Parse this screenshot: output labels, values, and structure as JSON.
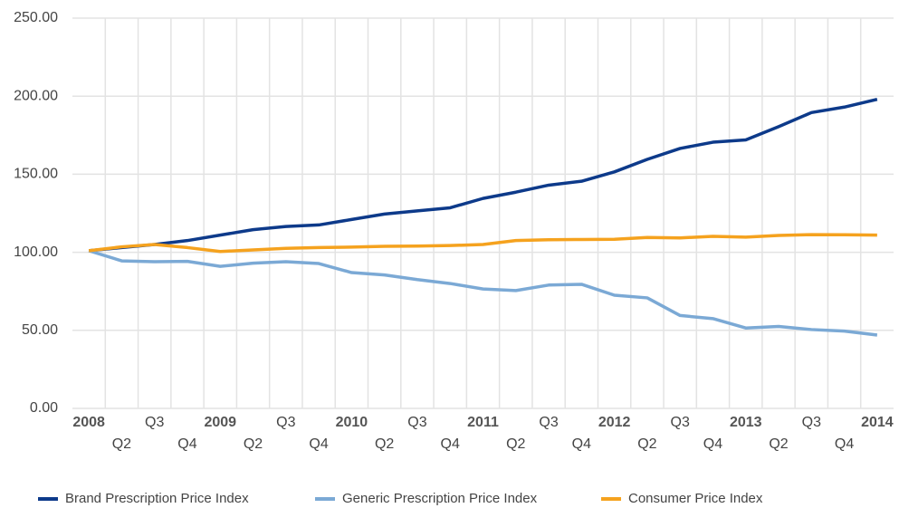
{
  "chart_data": {
    "type": "line",
    "categories": [
      "2008",
      "Q2",
      "Q3",
      "Q4",
      "2009",
      "Q2",
      "Q3",
      "Q4",
      "2010",
      "Q2",
      "Q3",
      "Q4",
      "2011",
      "Q2",
      "Q3",
      "Q4",
      "2012",
      "Q2",
      "Q3",
      "Q4",
      "2013",
      "Q2",
      "Q3",
      "Q4",
      "2014"
    ],
    "series": [
      {
        "name": "Brand Prescription Price Index",
        "color": "#0d3a8a",
        "values": [
          101,
          103,
          105,
          107.5,
          111,
          114.5,
          116.5,
          117.5,
          121,
          124.5,
          126.5,
          128.5,
          134.5,
          138.5,
          143,
          145.5,
          151.5,
          159.5,
          166.5,
          170.5,
          172,
          180.5,
          189.5,
          193,
          198
        ]
      },
      {
        "name": "Generic Prescription Price Index",
        "color": "#7ba9d5",
        "values": [
          101,
          94.5,
          94,
          94.2,
          91,
          93,
          94,
          92.8,
          87,
          85.5,
          82.5,
          80,
          76.5,
          75.5,
          79,
          79.5,
          72.5,
          70.8,
          59.5,
          57.5,
          51.5,
          52.5,
          50.5,
          49.5,
          47
        ]
      },
      {
        "name": "Consumer Price Index",
        "color": "#f5a21e",
        "values": [
          101,
          103.5,
          105,
          103,
          100.5,
          101.5,
          102.5,
          103,
          103.3,
          103.8,
          104,
          104.3,
          105,
          107.5,
          108,
          108.2,
          108.3,
          109.5,
          109.2,
          110.2,
          109.7,
          110.8,
          111.3,
          111.2,
          111
        ]
      }
    ],
    "ylim": [
      0,
      250
    ],
    "yticks": [
      {
        "value": 0,
        "label": "0.00"
      },
      {
        "value": 50,
        "label": "50.00"
      },
      {
        "value": 100,
        "label": "100.00"
      },
      {
        "value": 150,
        "label": "150.00"
      },
      {
        "value": 200,
        "label": "200.00"
      },
      {
        "value": 250,
        "label": "250.00"
      }
    ],
    "grid": true,
    "legend": "bottom"
  }
}
